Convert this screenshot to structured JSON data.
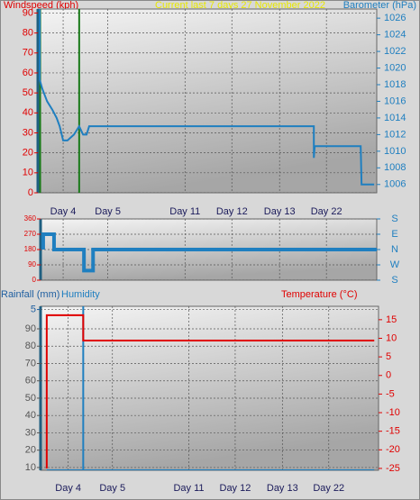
{
  "chart_data": [
    {
      "type": "line",
      "title": "Current last 7 days 27 November 2022",
      "ylabel": "Windspeed (kph)",
      "y2label": "Barometer (hPa)",
      "xlim": [
        0,
        8
      ],
      "xticks": [
        {
          "value": 0.77,
          "label": "Day 4"
        },
        {
          "value": 1.8,
          "label": "Day 5"
        },
        {
          "value": 3.58,
          "label": "Day 11"
        },
        {
          "value": 4.66,
          "label": "Day 12"
        },
        {
          "value": 5.76,
          "label": "Day 13"
        },
        {
          "value": 6.84,
          "label": "Day 22"
        }
      ],
      "ylim": [
        0,
        92
      ],
      "yticks": [
        0,
        10,
        20,
        30,
        40,
        50,
        60,
        70,
        80,
        90
      ],
      "y2lim": [
        1005,
        1027.1
      ],
      "y2ticks": [
        1006,
        1008,
        1010,
        1012,
        1014,
        1016,
        1018,
        1020,
        1022,
        1024,
        1026
      ],
      "ycolor": "#e00000",
      "y2color": "#1f7fc0",
      "series": [
        {
          "color": "#1a7a1a",
          "x": [
            0.24,
            0.24,
            0.7,
            1.14,
            1.14
          ],
          "values": [
            0,
            92,
            null,
            0,
            92
          ]
        },
        {
          "color": "#1f7fc0",
          "axis": "y2",
          "x": [
            0.23,
            0.23,
            0.29,
            0.4,
            0.52,
            0.62,
            0.69,
            0.77,
            0.87,
            1.02,
            1.14,
            1.23,
            1.31,
            1.37,
            6.55,
            6.55,
            6.57,
            7.63,
            7.65,
            7.94
          ],
          "values": [
            1027.1,
            1018.6,
            1017.5,
            1016,
            1015,
            1014,
            1013,
            1011.3,
            1011.3,
            1012,
            1013,
            1012,
            1012,
            1013,
            1013,
            1009.2,
            1010.6,
            1010.6,
            1006,
            1006
          ]
        }
      ]
    },
    {
      "type": "line",
      "xlim": [
        0,
        8
      ],
      "xticks": [
        {
          "value": 0.77,
          "label": "Day 4"
        },
        {
          "value": 1.8,
          "label": "Day 5"
        },
        {
          "value": 3.58,
          "label": "Day 11"
        },
        {
          "value": 4.66,
          "label": "Day 12"
        },
        {
          "value": 5.76,
          "label": "Day 13"
        },
        {
          "value": 6.84,
          "label": "Day 22"
        }
      ],
      "ylim": [
        0,
        360
      ],
      "yticks": [
        0,
        90,
        180,
        270,
        360
      ],
      "y2lim": [
        0,
        360
      ],
      "y2ticks": [
        {
          "value": 0,
          "label": "S"
        },
        {
          "value": 90,
          "label": "W"
        },
        {
          "value": 180,
          "label": "N"
        },
        {
          "value": 270,
          "label": "E"
        },
        {
          "value": 360,
          "label": "S"
        }
      ],
      "ycolor": "#e00000",
      "y2color": "#1f7fc0",
      "series": [
        {
          "color": "#1f7fc0",
          "x": [
            0.31,
            0.31,
            0.56,
            0.56,
            1.25,
            1.25,
            1.46,
            1.46,
            8
          ],
          "values": [
            180,
            270,
            270,
            180,
            180,
            56,
            56,
            180,
            180
          ]
        }
      ]
    },
    {
      "type": "line",
      "ylabel": "Rainfall (mm)",
      "y3label": "Humidity",
      "y2label": "Temperature (°C)",
      "xlim": [
        0,
        8
      ],
      "xticks": [
        {
          "value": 0.77,
          "label": "Day 4"
        },
        {
          "value": 1.8,
          "label": "Day 5"
        },
        {
          "value": 3.58,
          "label": "Day 11"
        },
        {
          "value": 4.66,
          "label": "Day 12"
        },
        {
          "value": 5.76,
          "label": "Day 13"
        },
        {
          "value": 6.84,
          "label": "Day 22"
        }
      ],
      "ylim": [
        0,
        5.1
      ],
      "yticks": [
        5
      ],
      "y3lim": [
        8.4,
        103
      ],
      "y3ticks": [
        10,
        20,
        30,
        40,
        50,
        60,
        70,
        80,
        90
      ],
      "y2lim": [
        -25.5,
        18.6
      ],
      "y2ticks": [
        15,
        10,
        5,
        0,
        -5,
        -10,
        -15,
        -20,
        -25
      ],
      "ycolor": "#1f5fa0",
      "y3color": "#555555",
      "y2color": "#e00000",
      "series": [
        {
          "color": "#1f7fc0",
          "x": [
            0.27,
            7.9
          ],
          "values": [
            0,
            0
          ]
        },
        {
          "color": "#1f7fc0",
          "axis": "y3",
          "x": [
            1.12,
            1.12
          ],
          "values": [
            8.4,
            103
          ]
        },
        {
          "color": "#e00000",
          "axis": "y2",
          "x": [
            0.27,
            0.27,
            1.12,
            1.12,
            7.9
          ],
          "values": [
            -25,
            16.2,
            16.2,
            9.4,
            9.4
          ]
        }
      ]
    }
  ]
}
